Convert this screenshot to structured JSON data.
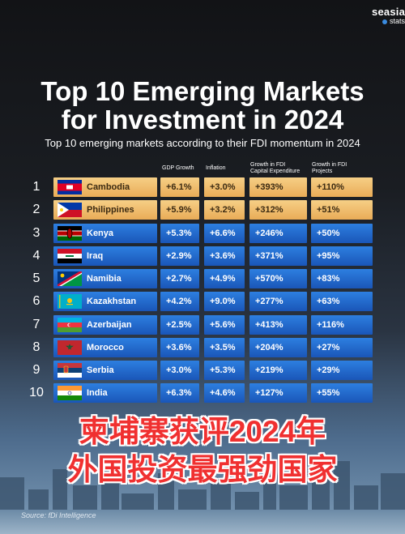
{
  "brand": {
    "name": "seasia",
    "sub": "stats"
  },
  "title_line1": "Top 10 Emerging Markets",
  "title_line2": "for Investment in 2024",
  "subtitle": "Top 10 emerging markets according to their FDI momentum in 2024",
  "columns": {
    "gdp": "GDP Growth",
    "inflation": "Inflation",
    "capex": [
      "Growth in FDI",
      "Capital Expenditure"
    ],
    "projects": [
      "Growth in FDI",
      "Projects"
    ]
  },
  "rows": [
    {
      "rank": "1",
      "country": "Cambodia",
      "gdp": "+6.1%",
      "inflation": "+3.0%",
      "capex": "+393%",
      "projects": "+110%",
      "style": "gold",
      "flag": "cambodia-flag-icon"
    },
    {
      "rank": "2",
      "country": "Philippines",
      "gdp": "+5.9%",
      "inflation": "+3.2%",
      "capex": "+312%",
      "projects": "+51%",
      "style": "gold",
      "flag": "philippines-flag-icon"
    },
    {
      "rank": "3",
      "country": "Kenya",
      "gdp": "+5.3%",
      "inflation": "+6.6%",
      "capex": "+246%",
      "projects": "+50%",
      "style": "blue",
      "flag": "kenya-flag-icon"
    },
    {
      "rank": "4",
      "country": "Iraq",
      "gdp": "+2.9%",
      "inflation": "+3.6%",
      "capex": "+371%",
      "projects": "+95%",
      "style": "blue",
      "flag": "iraq-flag-icon"
    },
    {
      "rank": "5",
      "country": "Namibia",
      "gdp": "+2.7%",
      "inflation": "+4.9%",
      "capex": "+570%",
      "projects": "+83%",
      "style": "blue",
      "flag": "namibia-flag-icon"
    },
    {
      "rank": "6",
      "country": "Kazakhstan",
      "gdp": "+4.2%",
      "inflation": "+9.0%",
      "capex": "+277%",
      "projects": "+63%",
      "style": "blue",
      "flag": "kazakhstan-flag-icon"
    },
    {
      "rank": "7",
      "country": "Azerbaijan",
      "gdp": "+2.5%",
      "inflation": "+5.6%",
      "capex": "+413%",
      "projects": "+116%",
      "style": "blue",
      "flag": "azerbaijan-flag-icon"
    },
    {
      "rank": "8",
      "country": "Morocco",
      "gdp": "+3.6%",
      "inflation": "+3.5%",
      "capex": "+204%",
      "projects": "+27%",
      "style": "blue",
      "flag": "morocco-flag-icon"
    },
    {
      "rank": "9",
      "country": "Serbia",
      "gdp": "+3.0%",
      "inflation": "+5.3%",
      "capex": "+219%",
      "projects": "+29%",
      "style": "blue",
      "flag": "serbia-flag-icon"
    },
    {
      "rank": "10",
      "country": "India",
      "gdp": "+6.3%",
      "inflation": "+4.6%",
      "capex": "+127%",
      "projects": "+55%",
      "style": "blue",
      "flag": "india-flag-icon"
    }
  ],
  "overlay_line1": "柬埔寨获评2024年",
  "overlay_line2": "外国投资最强劲国家",
  "source": "Source: fDi Intelligence",
  "colors": {
    "gold": "#f0bd6e",
    "blue": "#2168cf",
    "overlay_red": "#f03030"
  }
}
